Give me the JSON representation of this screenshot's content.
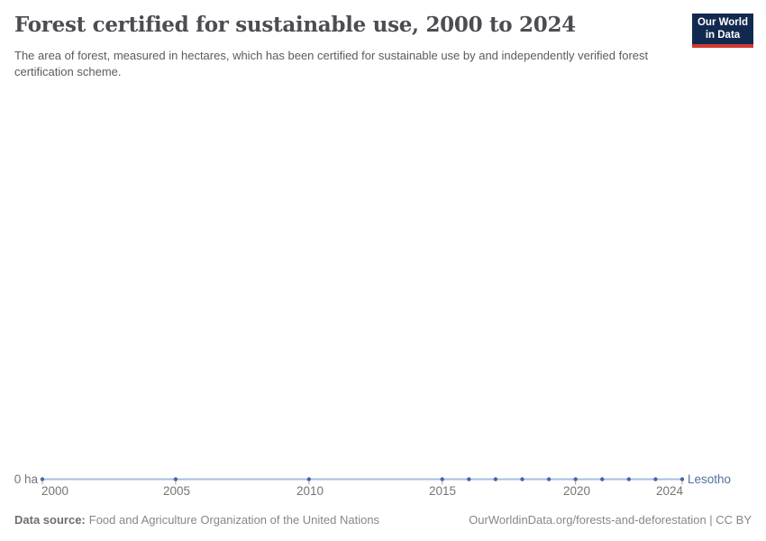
{
  "logo": {
    "line1": "Our World",
    "line2": "in Data",
    "background": "#12294f",
    "bar_color": "#cf3a33"
  },
  "chart_data": {
    "type": "line",
    "title": "Forest certified for sustainable use, 2000 to 2024",
    "subtitle": "The area of forest, measured in hectares, which has been certified for sustainable use by and independently verified forest certification scheme.",
    "unit": "ha",
    "xlabel": "",
    "ylabel": "",
    "xlim": [
      2000,
      2024
    ],
    "ylim": [
      0,
      0
    ],
    "grid": false,
    "legend_position": "end-of-line",
    "x_ticks": [
      2000,
      2005,
      2010,
      2015,
      2020,
      2024
    ],
    "y_tick_label": "0 ha",
    "series": [
      {
        "name": "Lesotho",
        "x": [
          2000,
          2005,
          2010,
          2015,
          2016,
          2017,
          2018,
          2019,
          2020,
          2021,
          2022,
          2023,
          2024
        ],
        "values": [
          0,
          0,
          0,
          0,
          0,
          0,
          0,
          0,
          0,
          0,
          0,
          0,
          0
        ]
      }
    ],
    "colors": {
      "line": "#a9bedd",
      "marker": "#3f67ab",
      "entity_label": "#52719e",
      "axis_tick": "#a3a3a3"
    }
  },
  "footer": {
    "datasource_label": "Data source:",
    "datasource_value": "Food and Agriculture Organization of the United Nations",
    "right_text": "OurWorldinData.org/forests-and-deforestation | CC BY"
  }
}
